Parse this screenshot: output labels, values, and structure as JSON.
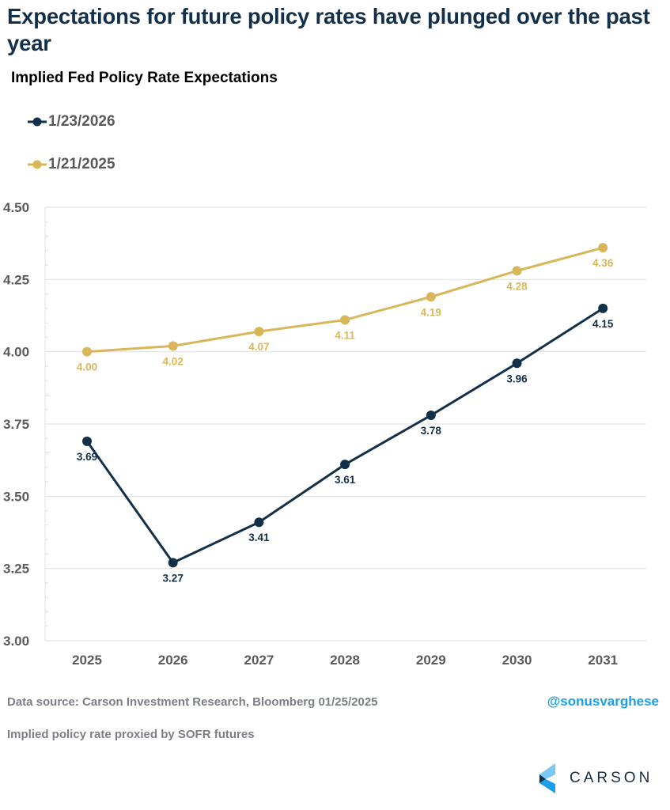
{
  "header": {
    "title": "Expectations for future policy rates have plunged over the past year",
    "subtitle": "Implied Fed Policy Rate Expectations"
  },
  "footer": {
    "source": "Data source: Carson Investment Research, Bloomberg   01/25/2025",
    "note": "Implied policy rate proxied by SOFR futures",
    "handle": "@sonusvarghese",
    "logo_text": "CARSON",
    "logo_icon": "carson-chevron-logo"
  },
  "colors": {
    "series_2026": "#13304a",
    "series_2025": "#d9b65a",
    "handle": "#1aa0e8",
    "axis_text": "#5a5a5a",
    "grid": "#e3e3e3"
  },
  "chart_data": {
    "type": "line",
    "title": "Implied Fed Policy Rate Expectations",
    "xlabel": "",
    "ylabel": "",
    "categories": [
      "2025",
      "2026",
      "2027",
      "2028",
      "2029",
      "2030",
      "2031"
    ],
    "ylim": [
      3.0,
      4.5
    ],
    "yticks": [
      "3.00",
      "3.25",
      "3.50",
      "3.75",
      "4.00",
      "4.25",
      "4.50"
    ],
    "grid": true,
    "legend_position": "top-left",
    "series": [
      {
        "name": "1/23/2026",
        "color": "#13304a",
        "values": [
          3.69,
          3.27,
          3.41,
          3.61,
          3.78,
          3.96,
          4.15
        ],
        "labels": [
          "3.69",
          "3.27",
          "3.41",
          "3.61",
          "3.78",
          "3.96",
          "4.15"
        ]
      },
      {
        "name": "1/21/2025",
        "color": "#d9b65a",
        "values": [
          4.0,
          4.02,
          4.07,
          4.11,
          4.19,
          4.28,
          4.36
        ],
        "labels": [
          "4.00",
          "4.02",
          "4.07",
          "4.11",
          "4.19",
          "4.28",
          "4.36"
        ]
      }
    ]
  }
}
